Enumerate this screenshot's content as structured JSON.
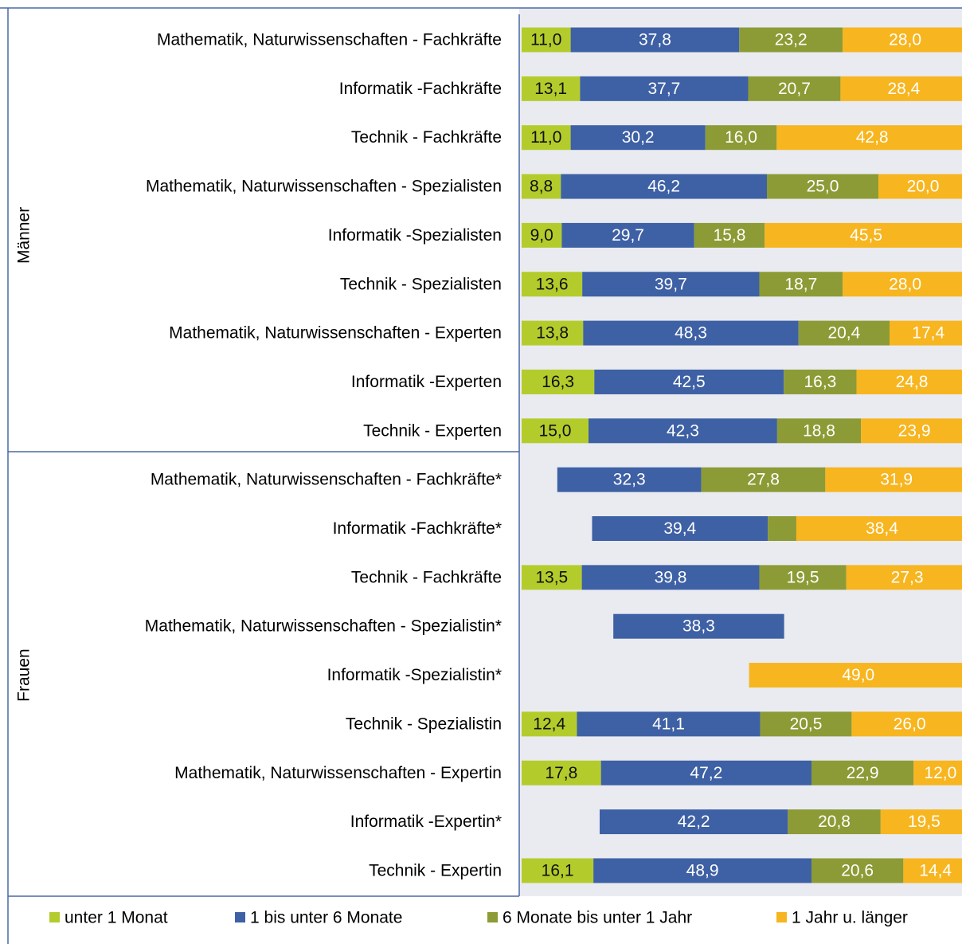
{
  "chart_data": {
    "type": "stacked_barh",
    "groups": [
      "Männer",
      "Frauen"
    ],
    "categories": [
      "Mathematik, Naturwissenschaften - Fachkräfte",
      "Informatik -Fachkräfte",
      "Technik - Fachkräfte",
      "Mathematik, Naturwissenschaften - Spezialisten",
      "Informatik -Spezialisten",
      "Technik - Spezialisten",
      "Mathematik, Naturwissenschaften - Experten",
      "Informatik -Experten",
      "Technik - Experten",
      "Mathematik, Naturwissenschaften - Fachkräfte*",
      "Informatik -Fachkräfte*",
      "Technik - Fachkräfte",
      "Mathematik, Naturwissenschaften - Spezialistin*",
      "Informatik -Spezialistin*",
      "Technik - Spezialistin",
      "Mathematik, Naturwissenschaften - Expertin",
      "Informatik -Expertin*",
      "Technik - Expertin"
    ],
    "xlim": [
      0,
      100
    ],
    "series": [
      {
        "name": "unter 1 Monat",
        "color": "#b3cc2c",
        "values": [
          11.0,
          13.1,
          11.0,
          8.8,
          9.0,
          13.6,
          13.8,
          16.3,
          15.0,
          null,
          null,
          13.5,
          null,
          null,
          12.4,
          17.8,
          null,
          16.1
        ],
        "value_labels": [
          "11,0",
          "13,1",
          "11,0",
          "8,8",
          "9,0",
          "13,6",
          "13,8",
          "16,3",
          "15,0",
          null,
          null,
          "13,5",
          null,
          null,
          "12,4",
          "17,8",
          null,
          "16,1"
        ]
      },
      {
        "name": "1 bis unter 6 Monate",
        "color": "#3e60a4",
        "values": [
          37.8,
          37.7,
          30.2,
          46.2,
          29.7,
          39.7,
          48.3,
          42.5,
          42.3,
          32.3,
          39.4,
          39.8,
          38.3,
          null,
          41.1,
          47.2,
          42.2,
          48.9
        ],
        "value_labels": [
          "37,8",
          "37,7",
          "30,2",
          "46,2",
          "29,7",
          "39,7",
          "48,3",
          "42,5",
          "42,3",
          "32,3",
          "39,4",
          "39,8",
          "38,3",
          null,
          "41,1",
          "47,2",
          "42,2",
          "48,9"
        ]
      },
      {
        "name": "6 Monate bis unter 1 Jahr",
        "color": "#8c9b35",
        "values": [
          23.2,
          20.7,
          16.0,
          25.0,
          15.8,
          18.7,
          20.4,
          16.3,
          18.8,
          27.8,
          6.4,
          19.5,
          null,
          null,
          20.5,
          22.9,
          20.8,
          20.6
        ],
        "value_labels": [
          "23,2",
          "20,7",
          "16,0",
          "25,0",
          "15,8",
          "18,7",
          "20,4",
          "16,3",
          "18,8",
          "27,8",
          null,
          "19,5",
          null,
          null,
          "20,5",
          "22,9",
          "20,8",
          "20,6"
        ]
      },
      {
        "name": "1 Jahr u. länger",
        "color": "#f7b51f",
        "values": [
          28.0,
          28.4,
          42.8,
          20.0,
          45.5,
          28.0,
          17.4,
          24.8,
          23.9,
          31.9,
          38.4,
          27.3,
          null,
          49.0,
          26.0,
          12.0,
          19.5,
          14.4
        ],
        "value_labels": [
          "28,0",
          "28,4",
          "42,8",
          "20,0",
          "45,5",
          "28,0",
          "17,4",
          "24,8",
          "23,9",
          "31,9",
          "38,4",
          "27,3",
          null,
          "49,0",
          "26,0",
          "12,0",
          "19,5",
          "14,4"
        ]
      }
    ],
    "legend": "bottom"
  }
}
